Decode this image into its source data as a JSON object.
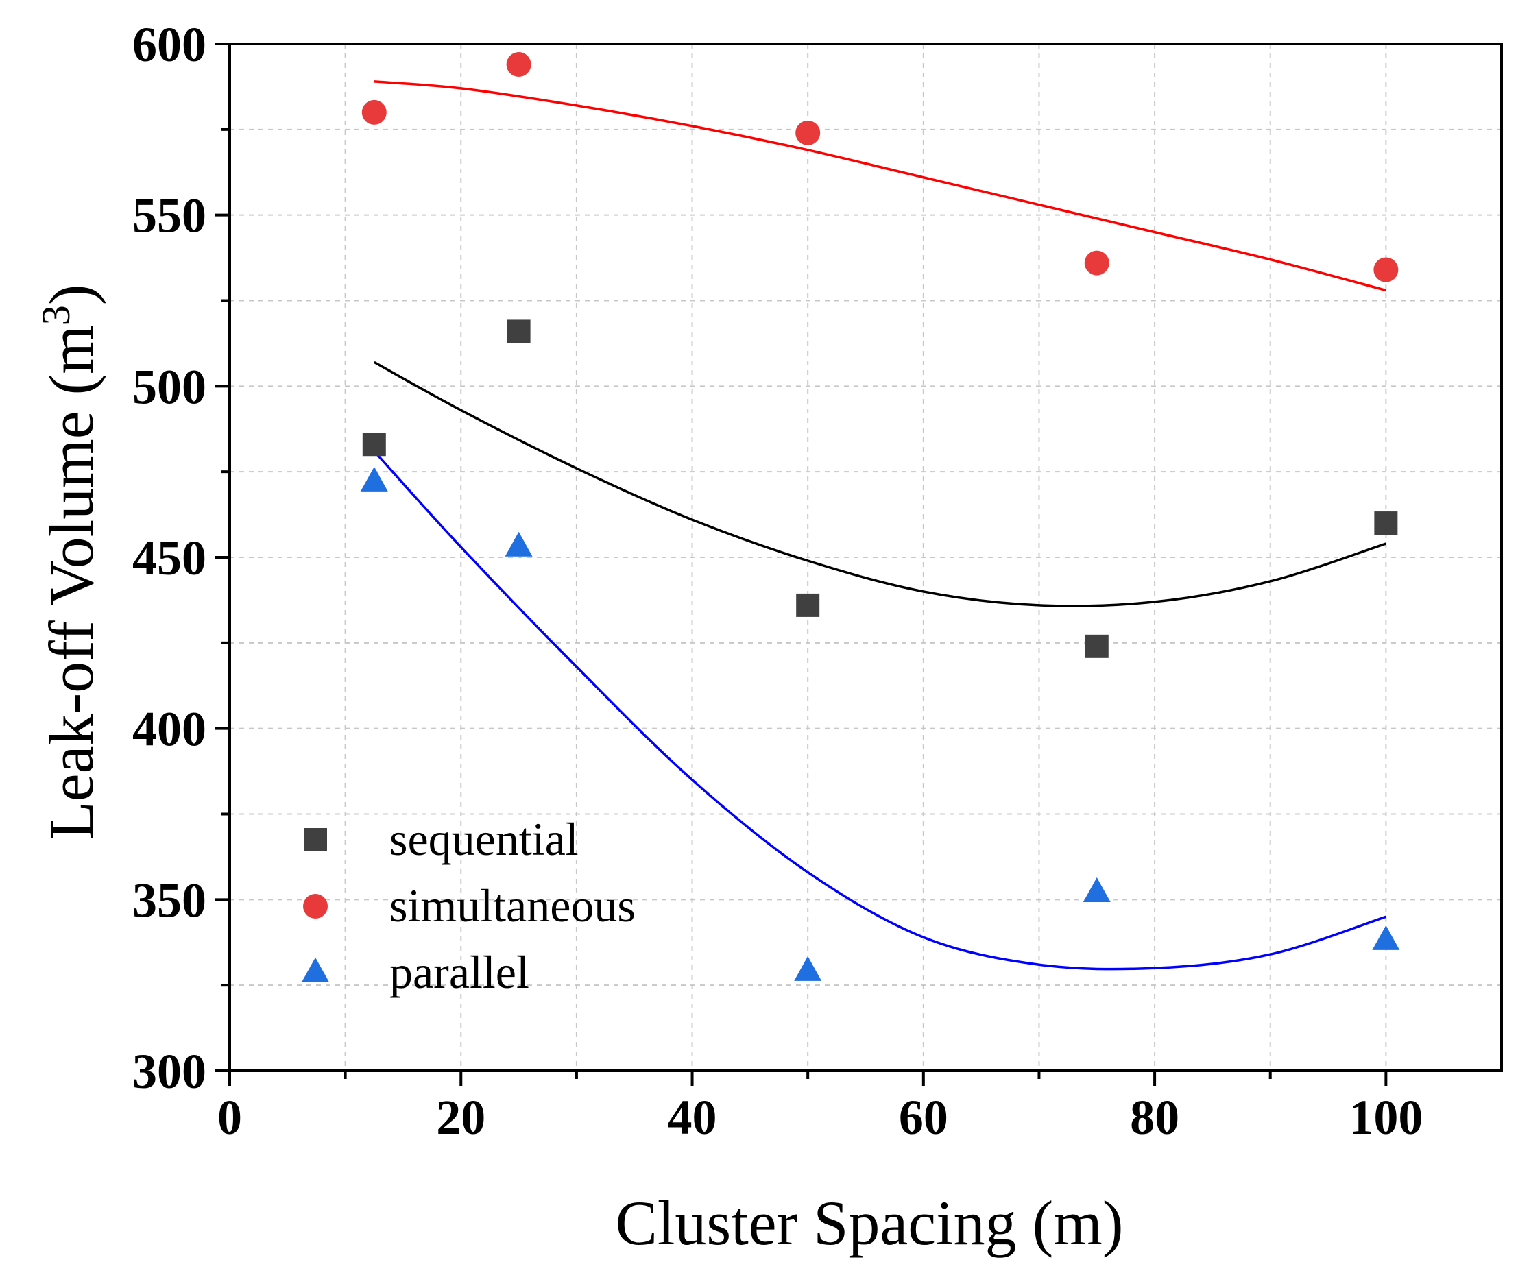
{
  "chart_data": {
    "type": "scatter",
    "xlabel": "Cluster Spacing (m)",
    "ylabel_main": "Leak-off Volume (m",
    "ylabel_sup": "3",
    "ylabel_close": ")",
    "xlim": [
      0,
      110
    ],
    "ylim": [
      300,
      600
    ],
    "x_major_ticks": [
      0,
      20,
      40,
      60,
      80,
      100
    ],
    "x_minor_ticks": [
      10,
      30,
      50,
      70,
      90
    ],
    "y_major_ticks": [
      300,
      350,
      400,
      450,
      500,
      550,
      600
    ],
    "y_minor_ticks": [
      325,
      375,
      425,
      475,
      525,
      575
    ],
    "x_tick_labels": [
      "0",
      "20",
      "40",
      "60",
      "80",
      "100"
    ],
    "y_tick_labels": [
      "300",
      "350",
      "400",
      "450",
      "500",
      "550",
      "600"
    ],
    "grid": true,
    "legend_position": "bottom-left",
    "series": [
      {
        "name": "sequential",
        "marker": "square",
        "color": "#404040",
        "fit_color": "#000000",
        "x": [
          12.5,
          25,
          50,
          75,
          100
        ],
        "y": [
          483,
          516,
          436,
          424,
          460
        ],
        "fit_x": [
          12.5,
          20,
          30,
          40,
          50,
          60,
          70,
          80,
          90,
          100
        ],
        "fit_y": [
          507,
          493,
          476,
          461,
          449,
          440,
          436,
          437,
          443,
          454
        ]
      },
      {
        "name": "simultaneous",
        "marker": "circle",
        "color": "#e83a3a",
        "fit_color": "#ff0000",
        "x": [
          12.5,
          25,
          50,
          75,
          100
        ],
        "y": [
          580,
          594,
          574,
          536,
          534
        ],
        "fit_x": [
          12.5,
          20,
          30,
          40,
          50,
          60,
          70,
          80,
          90,
          100
        ],
        "fit_y": [
          589,
          587,
          582,
          576,
          569,
          561,
          553,
          545,
          537,
          528
        ]
      },
      {
        "name": "parallel",
        "marker": "triangle",
        "color": "#1f6fe0",
        "fit_color": "#0000ff",
        "x": [
          12.5,
          25,
          50,
          75,
          100
        ],
        "y": [
          472,
          453,
          329,
          352,
          338
        ],
        "fit_x": [
          12.5,
          20,
          30,
          40,
          50,
          60,
          70,
          80,
          90,
          100
        ],
        "fit_y": [
          481,
          453,
          418,
          385,
          358,
          339,
          331,
          330,
          334,
          345
        ]
      }
    ]
  }
}
